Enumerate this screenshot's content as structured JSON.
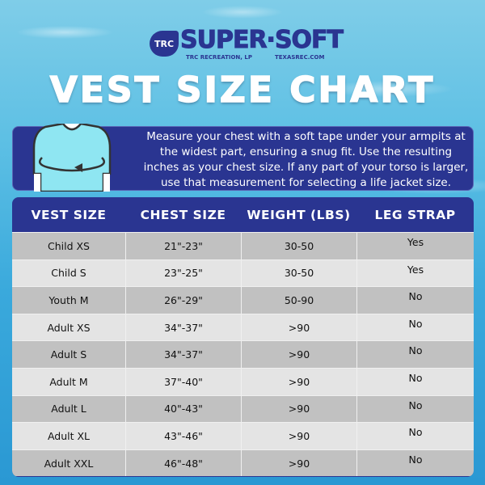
{
  "logo": {
    "badge": "TRC",
    "brand": "SUPER·SOFT",
    "company": "TRC RECREATION, LP",
    "website": "TEXASREC.COM"
  },
  "title": "VEST SIZE CHART",
  "instructions": "Measure your chest with a soft tape under your armpits at the widest part, ensuring a snug fit. Use the resulting inches as your chest size. If any part of your torso is larger, use that measurement for selecting a life jacket size.",
  "colors": {
    "navy": "#2a3591",
    "row_dark": "#c1c1c1",
    "row_light": "#e4e4e4",
    "shirt": "#8fe6f2"
  },
  "chart_data": {
    "type": "table",
    "columns": [
      "VEST SIZE",
      "CHEST SIZE",
      "WEIGHT (LBS)",
      "LEG STRAP"
    ],
    "rows": [
      [
        "Child XS",
        "21\"-23\"",
        "30-50",
        "Yes"
      ],
      [
        "Child S",
        "23\"-25\"",
        "30-50",
        "Yes"
      ],
      [
        "Youth M",
        "26\"-29\"",
        "50-90",
        "No"
      ],
      [
        "Adult XS",
        "34\"-37\"",
        ">90",
        "No"
      ],
      [
        "Adult S",
        "34\"-37\"",
        ">90",
        "No"
      ],
      [
        "Adult M",
        "37\"-40\"",
        ">90",
        "No"
      ],
      [
        "Adult L",
        "40\"-43\"",
        ">90",
        "No"
      ],
      [
        "Adult XL",
        "43\"-46\"",
        ">90",
        "No"
      ],
      [
        "Adult XXL",
        "46\"-48\"",
        ">90",
        "No"
      ]
    ]
  }
}
